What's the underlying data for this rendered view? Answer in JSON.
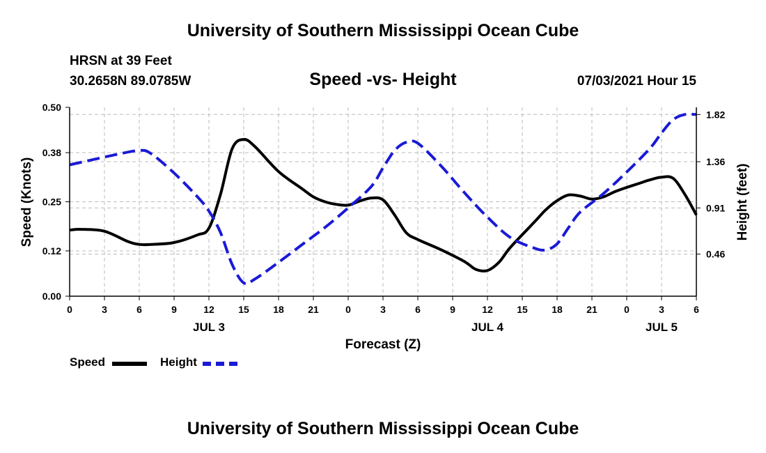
{
  "page": {
    "title_top": "University of Southern Mississippi Ocean Cube",
    "title_bottom": "University of Southern Mississippi Ocean Cube",
    "station": "HRSN at 39 Feet",
    "coords": "30.2658N  89.0785W",
    "subtitle": "Speed -vs- Height",
    "datetime": "07/03/2021 Hour 15"
  },
  "legend": {
    "speed_label": "Speed",
    "height_label": "Height"
  },
  "colors": {
    "speed": "#000000",
    "height": "#1a1ad6",
    "grid": "#bbbbbb",
    "axis": "#000000"
  },
  "chart_data": {
    "type": "line",
    "title": "Speed -vs- Height",
    "xlabel": "Forecast (Z)",
    "ylabel": "Speed (Knots)",
    "y2label": "Height (feet)",
    "x_range_hours": [
      0,
      54
    ],
    "ylim": [
      0,
      0.5
    ],
    "y2lim": [
      0.05,
      1.89
    ],
    "yticks": [
      0.0,
      0.12,
      0.25,
      0.38,
      0.5
    ],
    "ytick_labels": [
      "0.00",
      "0.12",
      "0.25",
      "0.38",
      "0.50"
    ],
    "y2ticks": [
      0.46,
      0.91,
      1.36,
      1.82
    ],
    "y2tick_labels": [
      "0.46",
      "0.91",
      "1.36",
      "1.82"
    ],
    "xticks": [
      0,
      3,
      6,
      9,
      12,
      15,
      18,
      21,
      24,
      27,
      30,
      33,
      36,
      39,
      42,
      45,
      48,
      51,
      54
    ],
    "xtick_labels": [
      "0",
      "3",
      "6",
      "9",
      "12",
      "15",
      "18",
      "21",
      "0",
      "3",
      "6",
      "9",
      "12",
      "15",
      "18",
      "21",
      "0",
      "3",
      "6"
    ],
    "date_labels": [
      {
        "x": 12,
        "label": "JUL 3"
      },
      {
        "x": 36,
        "label": "JUL 4"
      },
      {
        "x": 51,
        "label": "JUL 5"
      }
    ],
    "grid": true,
    "series": [
      {
        "name": "Speed",
        "axis": "left",
        "style": "solid",
        "x": [
          0,
          1,
          3,
          5,
          6,
          7,
          9,
          11,
          12,
          13,
          14,
          15,
          16,
          18,
          20,
          21,
          22,
          23,
          24,
          25,
          26,
          27,
          28,
          29,
          30,
          32,
          34,
          35,
          36,
          37,
          38,
          40,
          41,
          42,
          43,
          44,
          45,
          46,
          47,
          48,
          49,
          50,
          51,
          52,
          53,
          54
        ],
        "values": [
          0.175,
          0.177,
          0.172,
          0.145,
          0.137,
          0.137,
          0.142,
          0.162,
          0.18,
          0.27,
          0.39,
          0.415,
          0.395,
          0.33,
          0.285,
          0.263,
          0.25,
          0.243,
          0.241,
          0.252,
          0.26,
          0.255,
          0.215,
          0.168,
          0.15,
          0.123,
          0.092,
          0.071,
          0.068,
          0.09,
          0.13,
          0.195,
          0.228,
          0.253,
          0.268,
          0.265,
          0.257,
          0.263,
          0.277,
          0.288,
          0.298,
          0.308,
          0.315,
          0.312,
          0.27,
          0.215
        ]
      },
      {
        "name": "Height",
        "axis": "right",
        "style": "dashed",
        "x": [
          0,
          2,
          4,
          6,
          7,
          9,
          11,
          12,
          13,
          14,
          15,
          16,
          18,
          20,
          22,
          24,
          26,
          27,
          28,
          29,
          30,
          32,
          34,
          36,
          38,
          40,
          41,
          42,
          43,
          44,
          46,
          48,
          50,
          51,
          52,
          53,
          54
        ],
        "values": [
          1.33,
          1.38,
          1.43,
          1.47,
          1.44,
          1.25,
          1.02,
          0.88,
          0.67,
          0.36,
          0.18,
          0.22,
          0.38,
          0.55,
          0.72,
          0.91,
          1.12,
          1.3,
          1.47,
          1.55,
          1.54,
          1.32,
          1.06,
          0.82,
          0.62,
          0.52,
          0.5,
          0.56,
          0.72,
          0.87,
          1.05,
          1.26,
          1.49,
          1.64,
          1.77,
          1.82,
          1.82
        ]
      }
    ]
  }
}
